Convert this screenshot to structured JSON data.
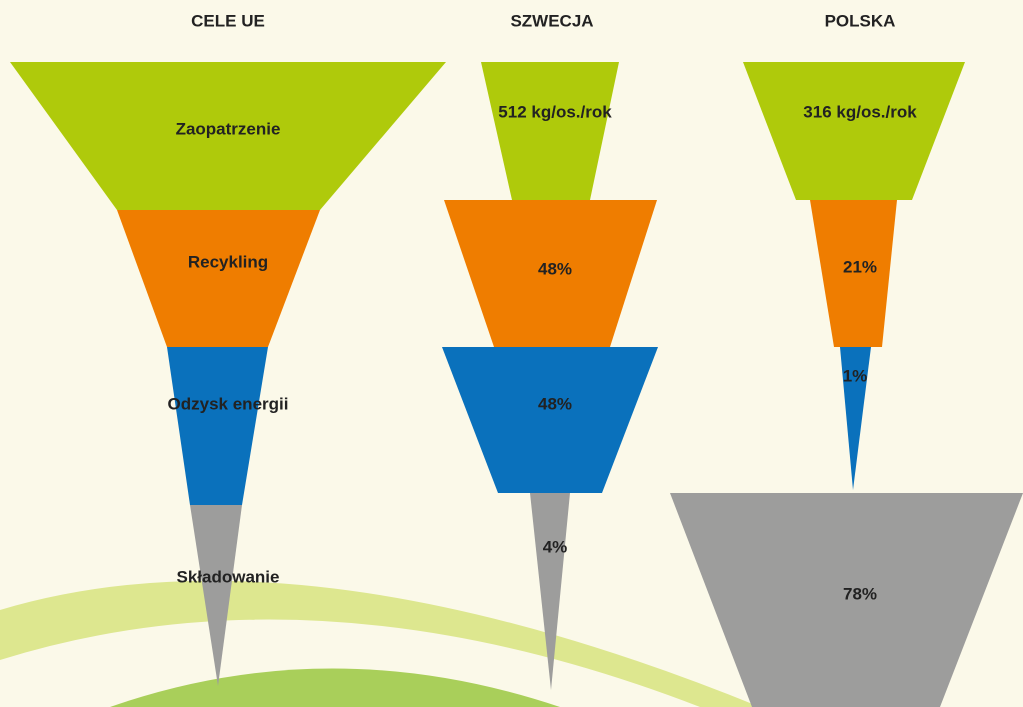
{
  "columns": [
    {
      "title": "CELE UE",
      "segments": [
        "Zaopatrzenie",
        "Recykling",
        "Odzysk energii",
        "Składowanie"
      ]
    },
    {
      "title": "SZWECJA",
      "segments": [
        "512 kg/os./rok",
        "48%",
        "48%",
        "4%"
      ]
    },
    {
      "title": "POLSKA",
      "segments": [
        "316 kg/os./rok",
        "21%",
        "1%",
        "78%"
      ]
    }
  ]
}
